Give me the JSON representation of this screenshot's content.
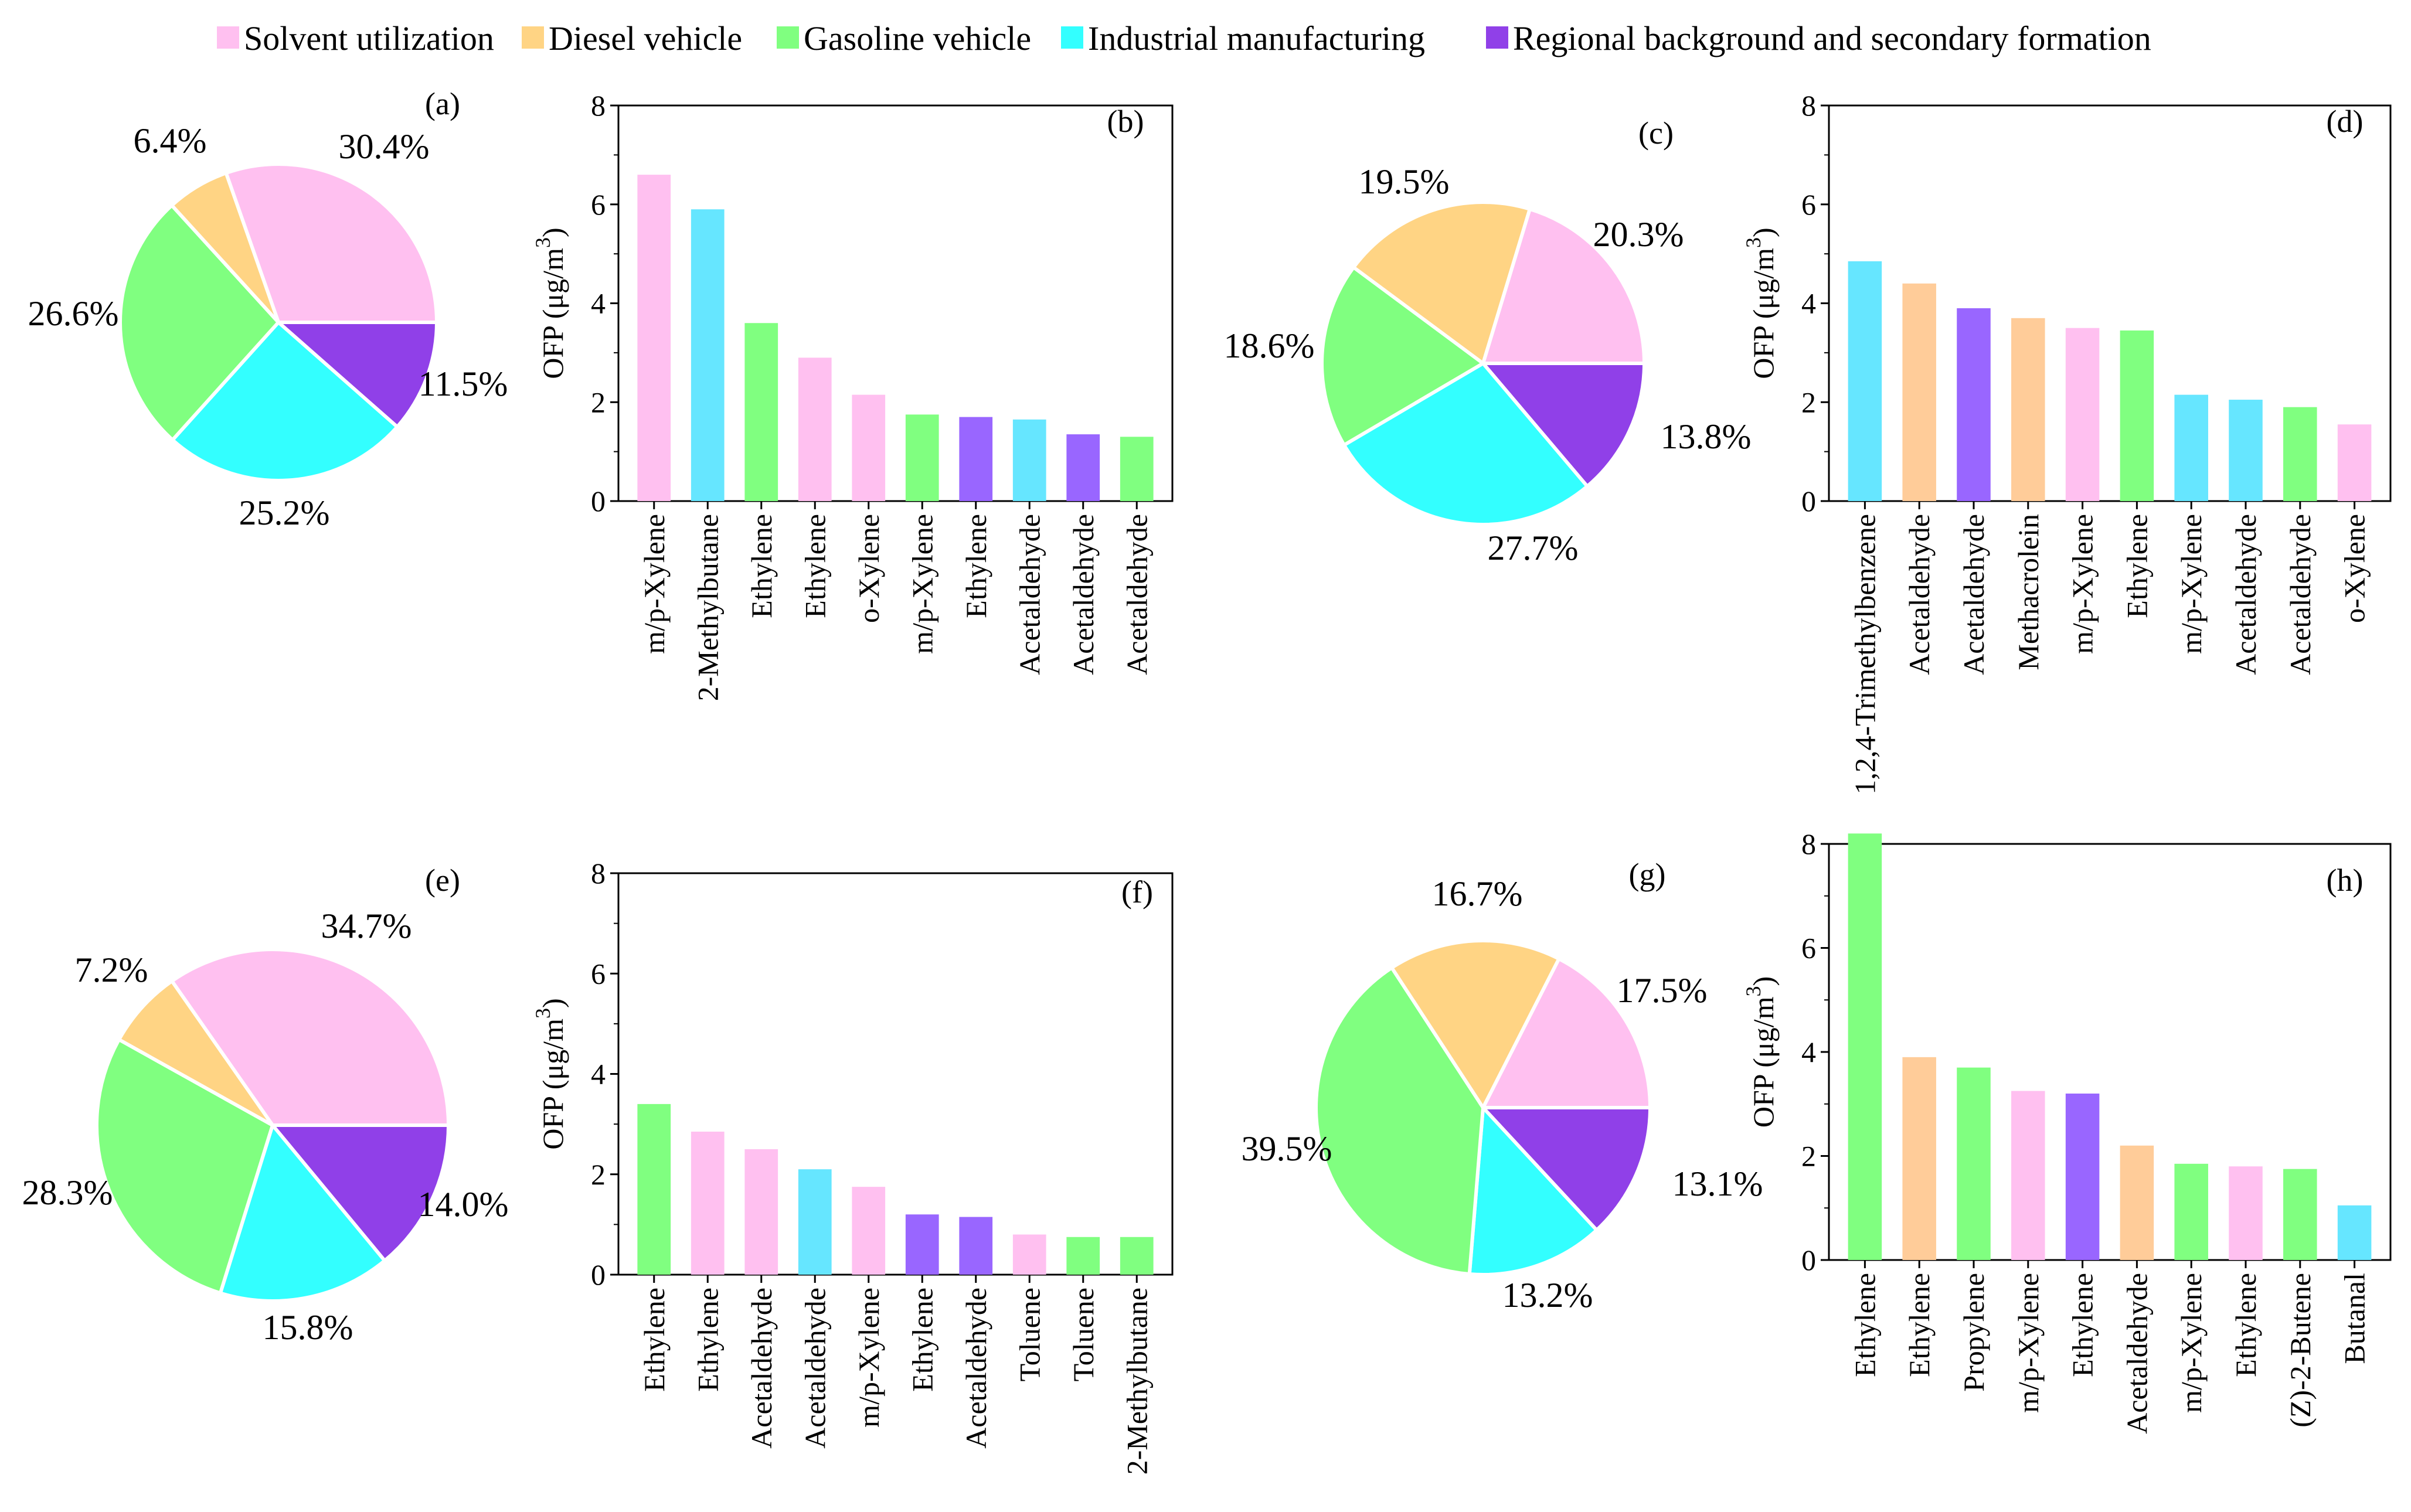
{
  "colors": {
    "Solvent utilization": "#ffc0f0",
    "Diesel vehicle": "#ffd484",
    "Gasoline vehicle": "#80ff80",
    "Industrial manufacturing": "#33ffff",
    "Regional background and secondary formation": "#9040e8",
    "bar_diesel": "#ffcc99",
    "bar_industrial": "#66e6ff",
    "bar_regional": "#9966ff"
  },
  "chart_data": [
    {
      "id": "legend",
      "type": "legend",
      "entries": [
        "Solvent utilization",
        "Diesel vehicle",
        "Gasoline vehicle",
        "Industrial manufacturing",
        "Regional background and secondary formation"
      ]
    },
    {
      "id": "a",
      "type": "pie",
      "label": "(a)",
      "slices": [
        {
          "source": "Solvent utilization",
          "value": 30.4,
          "label": "30.4%"
        },
        {
          "source": "Regional background and secondary formation",
          "value": 11.5,
          "label": "11.5%"
        },
        {
          "source": "Industrial manufacturing",
          "value": 25.2,
          "label": "25.2%"
        },
        {
          "source": "Gasoline vehicle",
          "value": 26.6,
          "label": "26.6%"
        },
        {
          "source": "Diesel vehicle",
          "value": 6.4,
          "label": "6.4%"
        }
      ]
    },
    {
      "id": "b",
      "type": "bar",
      "label": "(b)",
      "ylabel": "OFP (μg/m",
      "ylabel_sup": "3",
      "ylabel_close": ")",
      "ylim": [
        0,
        8
      ],
      "yticks": [
        "0",
        "2",
        "4",
        "6",
        "8"
      ],
      "categories": [
        "m/p-Xylene",
        "2-Methylbutane",
        "Ethylene",
        "Ethylene",
        "o-Xylene",
        "m/p-Xylene",
        "Ethylene",
        "Acetaldehyde",
        "Acetaldehyde",
        "Acetaldehyde"
      ],
      "values": [
        6.6,
        5.9,
        3.6,
        2.9,
        2.15,
        1.75,
        1.7,
        1.65,
        1.35,
        1.3
      ],
      "sources": [
        "Solvent utilization",
        "Industrial manufacturing",
        "Gasoline vehicle",
        "Solvent utilization",
        "Solvent utilization",
        "Gasoline vehicle",
        "Regional background and secondary formation",
        "Industrial manufacturing",
        "Regional background and secondary formation",
        "Gasoline vehicle"
      ]
    },
    {
      "id": "c",
      "type": "pie",
      "label": "(c)",
      "slices": [
        {
          "source": "Solvent utilization",
          "value": 20.3,
          "label": "20.3%"
        },
        {
          "source": "Regional background and secondary formation",
          "value": 13.8,
          "label": "13.8%"
        },
        {
          "source": "Industrial manufacturing",
          "value": 27.7,
          "label": "27.7%"
        },
        {
          "source": "Gasoline vehicle",
          "value": 18.6,
          "label": "18.6%"
        },
        {
          "source": "Diesel vehicle",
          "value": 19.5,
          "label": "19.5%"
        }
      ]
    },
    {
      "id": "d",
      "type": "bar",
      "label": "(d)",
      "ylabel": "OFP (μg/m",
      "ylabel_sup": "3",
      "ylabel_close": ")",
      "ylim": [
        0,
        8
      ],
      "yticks": [
        "0",
        "2",
        "4",
        "6",
        "8"
      ],
      "categories": [
        "1,2,4-Trimethylbenzene",
        "Acetaldehyde",
        "Acetaldehyde",
        "Methacrolein",
        "m/p-Xylene",
        "Ethylene",
        "m/p-Xylene",
        "Acetaldehyde",
        "Acetaldehyde",
        "o-Xylene"
      ],
      "values": [
        4.85,
        4.4,
        3.9,
        3.7,
        3.5,
        3.45,
        2.15,
        2.05,
        1.9,
        1.55
      ],
      "sources": [
        "Industrial manufacturing",
        "Diesel vehicle",
        "Regional background and secondary formation",
        "Diesel vehicle",
        "Solvent utilization",
        "Gasoline vehicle",
        "Industrial manufacturing",
        "Industrial manufacturing",
        "Gasoline vehicle",
        "Solvent utilization"
      ]
    },
    {
      "id": "e",
      "type": "pie",
      "label": "(e)",
      "slices": [
        {
          "source": "Solvent utilization",
          "value": 34.7,
          "label": "34.7%"
        },
        {
          "source": "Regional background and secondary formation",
          "value": 14.0,
          "label": "14.0%"
        },
        {
          "source": "Industrial manufacturing",
          "value": 15.8,
          "label": "15.8%"
        },
        {
          "source": "Gasoline vehicle",
          "value": 28.3,
          "label": "28.3%"
        },
        {
          "source": "Diesel vehicle",
          "value": 7.2,
          "label": "7.2%"
        }
      ]
    },
    {
      "id": "f",
      "type": "bar",
      "label": "(f)",
      "ylabel": "OFP (μg/m",
      "ylabel_sup": "3",
      "ylabel_close": ")",
      "ylim": [
        0,
        8
      ],
      "yticks": [
        "0",
        "2",
        "4",
        "6",
        "8"
      ],
      "categories": [
        "Ethylene",
        "Ethylene",
        "Acetaldehyde",
        "Acetaldehyde",
        "m/p-Xylene",
        "Ethylene",
        "Acetaldehyde",
        "Toluene",
        "Toluene",
        "2-Methylbutane"
      ],
      "values": [
        3.4,
        2.85,
        2.5,
        2.1,
        1.75,
        1.2,
        1.15,
        0.8,
        0.75,
        0.75
      ],
      "sources": [
        "Gasoline vehicle",
        "Solvent utilization",
        "Solvent utilization",
        "Industrial manufacturing",
        "Solvent utilization",
        "Regional background and secondary formation",
        "Regional background and secondary formation",
        "Solvent utilization",
        "Gasoline vehicle",
        "Gasoline vehicle"
      ]
    },
    {
      "id": "g",
      "type": "pie",
      "label": "(g)",
      "slices": [
        {
          "source": "Solvent utilization",
          "value": 17.5,
          "label": "17.5%"
        },
        {
          "source": "Regional background and secondary formation",
          "value": 13.1,
          "label": "13.1%"
        },
        {
          "source": "Industrial manufacturing",
          "value": 13.2,
          "label": "13.2%"
        },
        {
          "source": "Gasoline vehicle",
          "value": 39.5,
          "label": "39.5%"
        },
        {
          "source": "Diesel vehicle",
          "value": 16.7,
          "label": "16.7%"
        }
      ]
    },
    {
      "id": "h",
      "type": "bar",
      "label": "(h)",
      "ylabel": "OFP (μg/m",
      "ylabel_sup": "3",
      "ylabel_close": ")",
      "ylim": [
        0,
        8
      ],
      "yticks": [
        "0",
        "2",
        "4",
        "6",
        "8"
      ],
      "categories": [
        "Ethylene",
        "Ethylene",
        "Propylene",
        "m/p-Xylene",
        "Ethylene",
        "Acetaldehyde",
        "m/p-Xylene",
        "Ethylene",
        "(Z)-2-Butene",
        "Butanal"
      ],
      "values": [
        8.2,
        3.9,
        3.7,
        3.25,
        3.2,
        2.2,
        1.85,
        1.8,
        1.75,
        1.05
      ],
      "sources": [
        "Gasoline vehicle",
        "Diesel vehicle",
        "Gasoline vehicle",
        "Solvent utilization",
        "Regional background and secondary formation",
        "Diesel vehicle",
        "Gasoline vehicle",
        "Solvent utilization",
        "Gasoline vehicle",
        "Industrial manufacturing"
      ]
    }
  ]
}
